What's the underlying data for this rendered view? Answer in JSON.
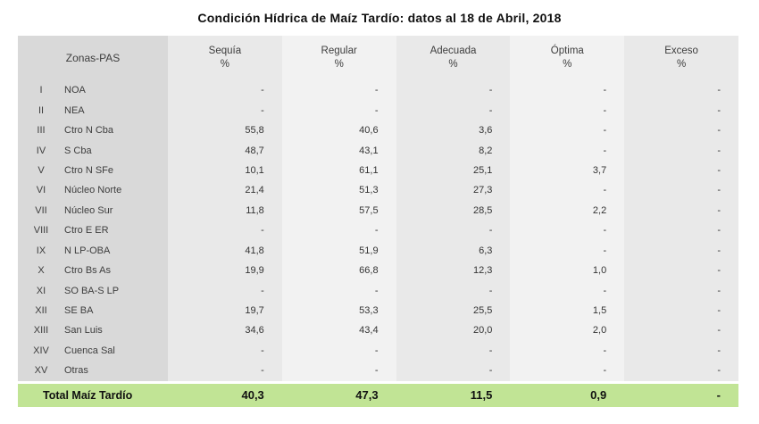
{
  "title": "Condición Hídrica de Maíz Tardío: datos al 18 de Abril, 2018",
  "chart_data": {
    "type": "table",
    "title": "Condición Hídrica de Maíz Tardío: datos al 18 de Abril, 2018",
    "zones_column_header": "Zonas-PAS",
    "measure_columns": [
      "Sequía",
      "Regular",
      "Adecuada",
      "Óptima",
      "Exceso"
    ],
    "unit": "%",
    "rows": [
      {
        "numeral": "I",
        "zone": "NOA",
        "values": [
          "-",
          "-",
          "-",
          "-",
          "-"
        ]
      },
      {
        "numeral": "II",
        "zone": "NEA",
        "values": [
          "-",
          "-",
          "-",
          "-",
          "-"
        ]
      },
      {
        "numeral": "III",
        "zone": "Ctro N Cba",
        "values": [
          "55,8",
          "40,6",
          "3,6",
          "-",
          "-"
        ]
      },
      {
        "numeral": "IV",
        "zone": "S Cba",
        "values": [
          "48,7",
          "43,1",
          "8,2",
          "-",
          "-"
        ]
      },
      {
        "numeral": "V",
        "zone": "Ctro N SFe",
        "values": [
          "10,1",
          "61,1",
          "25,1",
          "3,7",
          "-"
        ]
      },
      {
        "numeral": "VI",
        "zone": "Núcleo Norte",
        "values": [
          "21,4",
          "51,3",
          "27,3",
          "-",
          "-"
        ]
      },
      {
        "numeral": "VII",
        "zone": "Núcleo Sur",
        "values": [
          "11,8",
          "57,5",
          "28,5",
          "2,2",
          "-"
        ]
      },
      {
        "numeral": "VIII",
        "zone": "Ctro E ER",
        "values": [
          "-",
          "-",
          "-",
          "-",
          "-"
        ]
      },
      {
        "numeral": "IX",
        "zone": "N LP-OBA",
        "values": [
          "41,8",
          "51,9",
          "6,3",
          "-",
          "-"
        ]
      },
      {
        "numeral": "X",
        "zone": "Ctro Bs As",
        "values": [
          "19,9",
          "66,8",
          "12,3",
          "1,0",
          "-"
        ]
      },
      {
        "numeral": "XI",
        "zone": "SO BA-S LP",
        "values": [
          "-",
          "-",
          "-",
          "-",
          "-"
        ]
      },
      {
        "numeral": "XII",
        "zone": "SE BA",
        "values": [
          "19,7",
          "53,3",
          "25,5",
          "1,5",
          "-"
        ]
      },
      {
        "numeral": "XIII",
        "zone": "San Luis",
        "values": [
          "34,6",
          "43,4",
          "20,0",
          "2,0",
          "-"
        ]
      },
      {
        "numeral": "XIV",
        "zone": "Cuenca Sal",
        "values": [
          "-",
          "-",
          "-",
          "-",
          "-"
        ]
      },
      {
        "numeral": "XV",
        "zone": "Otras",
        "values": [
          "-",
          "-",
          "-",
          "-",
          "-"
        ]
      }
    ],
    "total": {
      "label": "Total Maíz Tardío",
      "values": [
        "40,3",
        "47,3",
        "11,5",
        "0,9",
        "-"
      ]
    }
  },
  "colors": {
    "zones_bg": "#d9d9d9",
    "band_dark": "#e9e9e9",
    "band_light": "#f2f2f2",
    "total_bg": "#c1e495",
    "text": "#333333"
  }
}
